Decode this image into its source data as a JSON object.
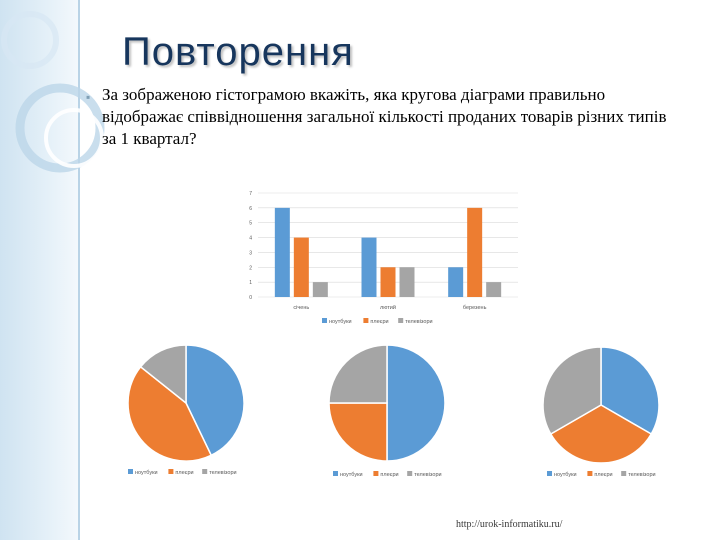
{
  "slide": {
    "title": "Повторення",
    "question": "За зображеною гістограмою вкажіть, яка кругова діаграми правильно відображає співвідношення загальної кількості проданих товарів різних типів за 1 квартал?",
    "footer_url": "http://urok-informatiku.ru/",
    "accent_colors": {
      "title": "#17365d",
      "band": "#cfe3f1"
    }
  },
  "chart_data": [
    {
      "type": "bar",
      "categories": [
        "січень",
        "лютий",
        "березень"
      ],
      "series": [
        {
          "name": "ноутбуки",
          "color": "#5b9bd5",
          "values": [
            6,
            4,
            2
          ]
        },
        {
          "name": "плеєри",
          "color": "#ed7d31",
          "values": [
            4,
            2,
            6
          ]
        },
        {
          "name": "телевізори",
          "color": "#a5a5a5",
          "values": [
            1,
            2,
            1
          ]
        }
      ],
      "y_ticks": [
        "0",
        "1",
        "2",
        "3",
        "4",
        "5",
        "6",
        "7"
      ],
      "ylim": [
        0,
        7
      ],
      "grid": true,
      "legend_position": "bottom"
    },
    {
      "type": "pie",
      "labels": [
        "ноутбуки",
        "плеєри",
        "телевізори"
      ],
      "colors": [
        "#5b9bd5",
        "#ed7d31",
        "#a5a5a5"
      ],
      "values": [
        12,
        12,
        4
      ],
      "legend_position": "bottom"
    },
    {
      "type": "pie",
      "labels": [
        "ноутбуки",
        "плеєри",
        "телевізори"
      ],
      "colors": [
        "#5b9bd5",
        "#ed7d31",
        "#a5a5a5"
      ],
      "values": [
        12,
        6,
        6
      ],
      "legend_position": "bottom"
    },
    {
      "type": "pie",
      "labels": [
        "ноутбуки",
        "плеєри",
        "телевізори"
      ],
      "colors": [
        "#5b9bd5",
        "#ed7d31",
        "#a5a5a5"
      ],
      "values": [
        1,
        1,
        1
      ],
      "legend_position": "bottom"
    }
  ]
}
